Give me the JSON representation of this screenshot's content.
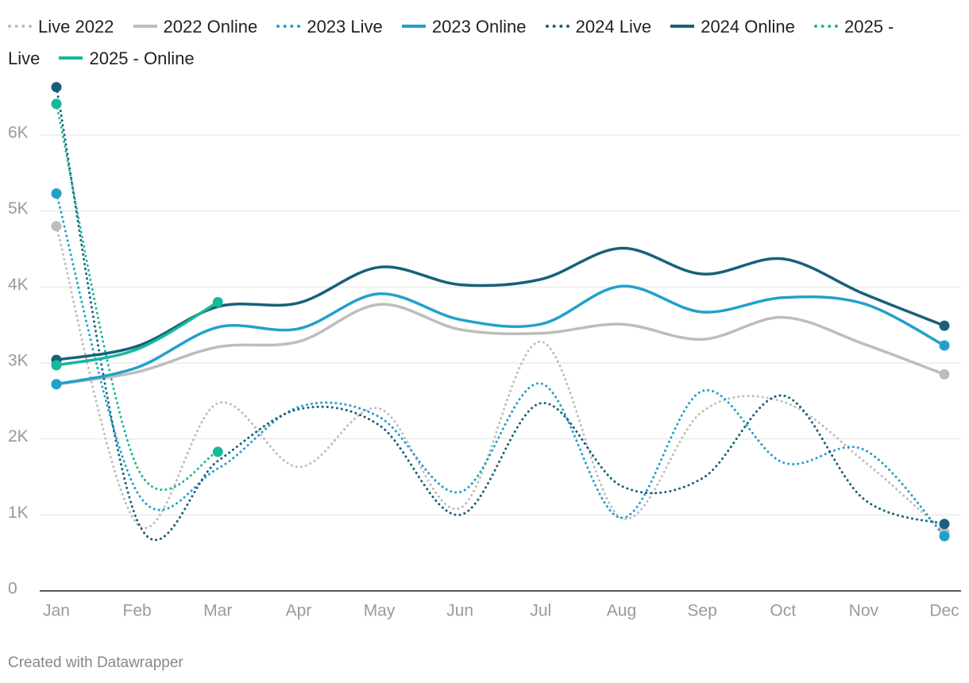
{
  "chart_data": {
    "type": "line",
    "categories": [
      "Jan",
      "Feb",
      "Mar",
      "Apr",
      "May",
      "Jun",
      "Jul",
      "Aug",
      "Sep",
      "Oct",
      "Nov",
      "Dec"
    ],
    "series": [
      {
        "name": "Live 2022",
        "color": "#bdbdbd",
        "line_style": "dotted",
        "values": [
          4800,
          880,
          2470,
          1630,
          2400,
          1090,
          3280,
          960,
          2360,
          2490,
          1710,
          770
        ]
      },
      {
        "name": "2022 Online",
        "color": "#bdbdbd",
        "line_style": "solid",
        "values": [
          2720,
          2880,
          3210,
          3280,
          3770,
          3440,
          3390,
          3510,
          3310,
          3600,
          3250,
          2850
        ]
      },
      {
        "name": "2023 Live",
        "color": "#22a0cc",
        "line_style": "dotted",
        "values": [
          5230,
          1300,
          1610,
          2420,
          2290,
          1300,
          2730,
          960,
          2630,
          1690,
          1860,
          720
        ]
      },
      {
        "name": "2023 Online",
        "color": "#22a0cc",
        "line_style": "solid",
        "values": [
          2720,
          2940,
          3470,
          3450,
          3910,
          3570,
          3510,
          4010,
          3670,
          3860,
          3780,
          3230
        ]
      },
      {
        "name": "2024 Live",
        "color": "#18607a",
        "line_style": "dotted",
        "values": [
          6630,
          930,
          1710,
          2390,
          2180,
          1000,
          2470,
          1380,
          1480,
          2570,
          1210,
          880
        ]
      },
      {
        "name": "2024 Online",
        "color": "#18607a",
        "line_style": "solid",
        "values": [
          3040,
          3220,
          3740,
          3790,
          4260,
          4030,
          4100,
          4510,
          4170,
          4370,
          3910,
          3490
        ]
      },
      {
        "name": "2025 - Live",
        "color": "#17b899",
        "line_style": "dotted",
        "values": [
          6410,
          1630,
          1830,
          null,
          null,
          null,
          null,
          null,
          null,
          null,
          null,
          null
        ]
      },
      {
        "name": "2025 - Online",
        "color": "#17b899",
        "line_style": "solid",
        "values": [
          2970,
          3180,
          3800,
          null,
          null,
          null,
          null,
          null,
          null,
          null,
          null,
          null
        ]
      }
    ],
    "ylim": [
      0,
      6700
    ],
    "yticks": [
      0,
      {
        "value": 1000,
        "label": "1K"
      },
      {
        "value": 2000,
        "label": "2K"
      },
      {
        "value": 3000,
        "label": "3K"
      },
      {
        "value": 4000,
        "label": "4K"
      },
      {
        "value": 5000,
        "label": "5K"
      },
      {
        "value": 6000,
        "label": "6K"
      }
    ],
    "grid": true,
    "source": "Created with Datawrapper"
  }
}
